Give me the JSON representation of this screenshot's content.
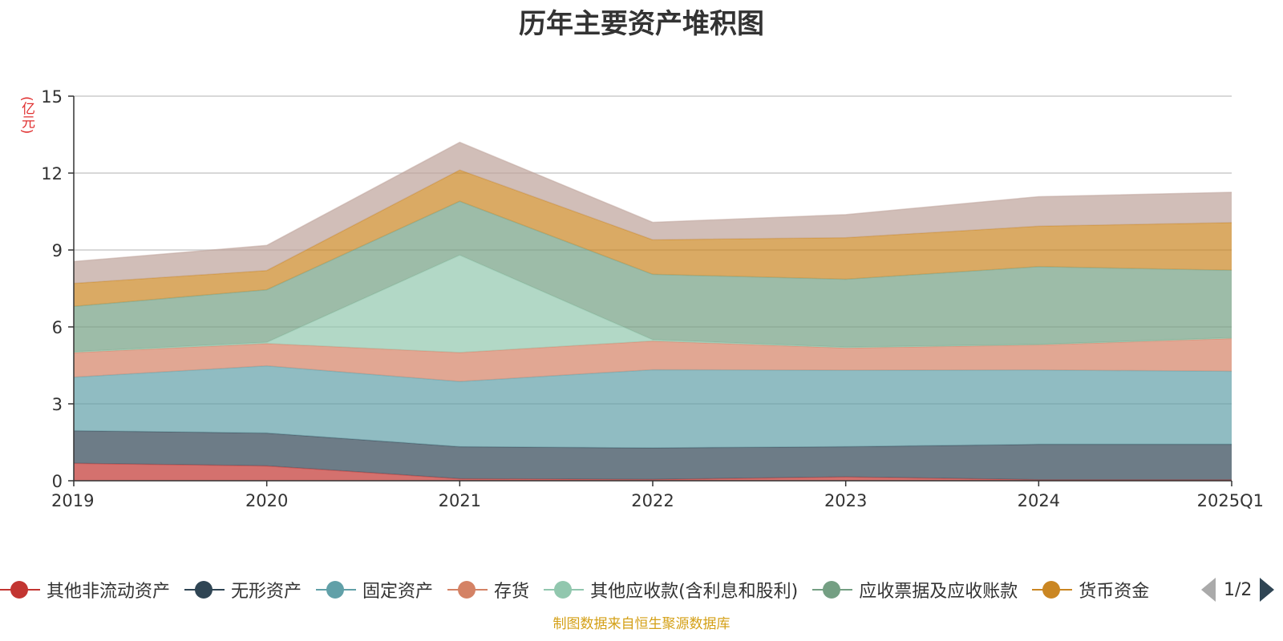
{
  "chart_data": {
    "type": "area",
    "stacked": true,
    "title": "历年主要资产堆积图",
    "unit_label": "(亿元)",
    "categories": [
      "2019",
      "2020",
      "2021",
      "2022",
      "2023",
      "2024",
      "2025Q1"
    ],
    "ylim": [
      0,
      15
    ],
    "yticks": [
      0,
      3,
      6,
      9,
      12,
      15
    ],
    "grid": true,
    "legend_position": "bottom",
    "series": [
      {
        "name": "其他非流动资产",
        "color": "#c23531",
        "values": [
          0.68,
          0.58,
          0.08,
          0.05,
          0.15,
          0.04,
          0.04
        ]
      },
      {
        "name": "无形资产",
        "color": "#2f4554",
        "values": [
          1.27,
          1.28,
          1.25,
          1.23,
          1.18,
          1.38,
          1.38
        ]
      },
      {
        "name": "固定资产",
        "color": "#61a0a8",
        "values": [
          2.09,
          2.62,
          2.54,
          3.05,
          2.98,
          2.9,
          2.85
        ]
      },
      {
        "name": "存货",
        "color": "#d48265",
        "values": [
          0.96,
          0.87,
          1.13,
          1.12,
          0.87,
          0.98,
          1.28
        ]
      },
      {
        "name": "其他应收款(含利息和股利)",
        "color": "#91c7ae",
        "values": [
          0.03,
          0.05,
          3.8,
          0.05,
          0.03,
          0.02,
          0.03
        ]
      },
      {
        "name": "应收票据及应收账款",
        "color": "#749f83",
        "values": [
          1.77,
          2.05,
          2.1,
          2.55,
          2.65,
          3.03,
          2.63
        ]
      },
      {
        "name": "货币资金",
        "color": "#ca8622",
        "values": [
          0.9,
          0.75,
          1.22,
          1.35,
          1.62,
          1.58,
          1.86
        ]
      },
      {
        "name": "",
        "color": "#bda29a",
        "values": [
          0.85,
          0.98,
          1.08,
          0.68,
          0.9,
          1.15,
          1.18
        ]
      }
    ]
  },
  "legend": {
    "visible_labels": [
      "其他非流动资产",
      "无形资产",
      "固定资产",
      "存货",
      "其他应收款(含利息和股利)",
      "应收票据及应收账款",
      "货币资金"
    ],
    "page_text": "1/2"
  },
  "footnote": "制图数据来自恒生聚源数据库"
}
